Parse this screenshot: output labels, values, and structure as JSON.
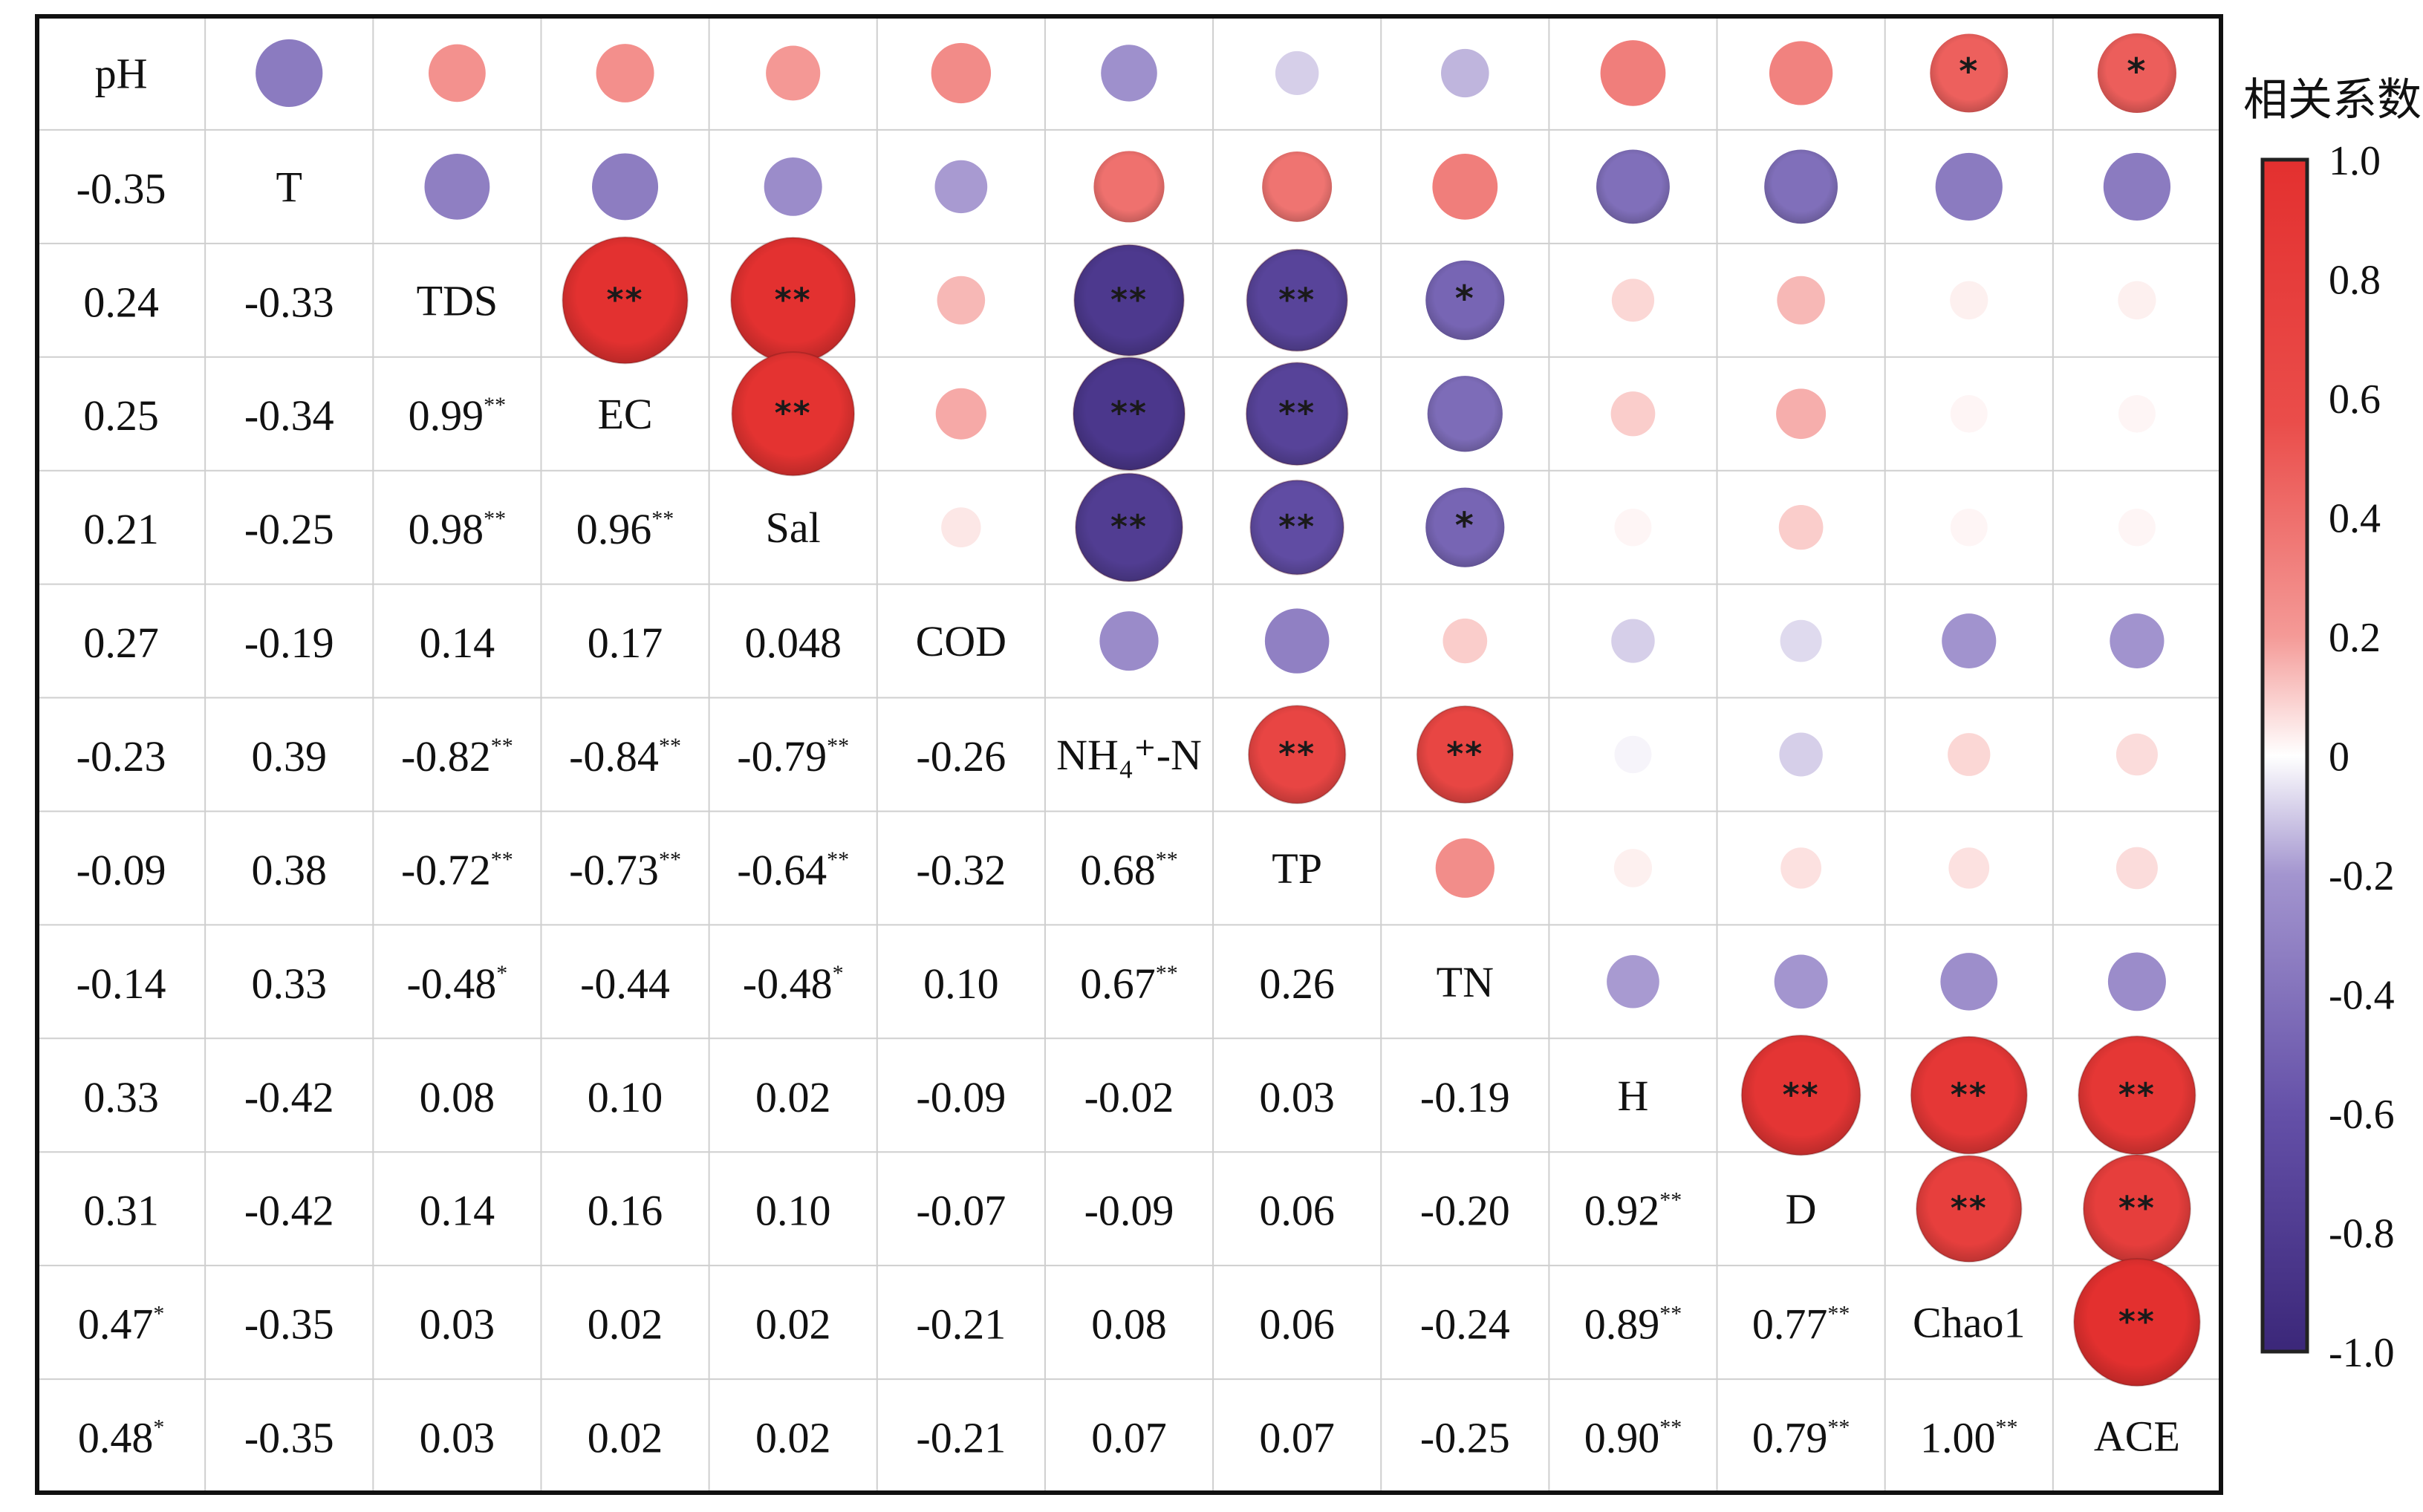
{
  "chart_data": {
    "type": "heatmap",
    "variables": [
      "pH",
      "T",
      "TDS",
      "EC",
      "Sal",
      "COD",
      "NH₄⁺-N",
      "TP",
      "TN",
      "H",
      "D",
      "Chao1",
      "ACE"
    ],
    "lower_triangle_rows": [
      [
        [
          "-0.35",
          ""
        ]
      ],
      [
        [
          "0.24",
          ""
        ],
        [
          "-0.33",
          ""
        ]
      ],
      [
        [
          "0.25",
          ""
        ],
        [
          "-0.34",
          ""
        ],
        [
          "0.99",
          "**"
        ]
      ],
      [
        [
          "0.21",
          ""
        ],
        [
          "-0.25",
          ""
        ],
        [
          "0.98",
          "**"
        ],
        [
          "0.96",
          "**"
        ]
      ],
      [
        [
          "0.27",
          ""
        ],
        [
          "-0.19",
          ""
        ],
        [
          "0.14",
          ""
        ],
        [
          "0.17",
          ""
        ],
        [
          "0.048",
          ""
        ]
      ],
      [
        [
          "-0.23",
          ""
        ],
        [
          "0.39",
          ""
        ],
        [
          "-0.82",
          "**"
        ],
        [
          "-0.84",
          "**"
        ],
        [
          "-0.79",
          "**"
        ],
        [
          "-0.26",
          ""
        ]
      ],
      [
        [
          "-0.09",
          ""
        ],
        [
          "0.38",
          ""
        ],
        [
          "-0.72",
          "**"
        ],
        [
          "-0.73",
          "**"
        ],
        [
          "-0.64",
          "**"
        ],
        [
          "-0.32",
          ""
        ],
        [
          "0.68",
          "**"
        ]
      ],
      [
        [
          "-0.14",
          ""
        ],
        [
          "0.33",
          ""
        ],
        [
          "-0.48",
          "*"
        ],
        [
          "-0.44",
          ""
        ],
        [
          "-0.48",
          "*"
        ],
        [
          "0.10",
          ""
        ],
        [
          "0.67",
          "**"
        ],
        [
          "0.26",
          ""
        ]
      ],
      [
        [
          "0.33",
          ""
        ],
        [
          "-0.42",
          ""
        ],
        [
          "0.08",
          ""
        ],
        [
          "0.10",
          ""
        ],
        [
          "0.02",
          ""
        ],
        [
          "-0.09",
          ""
        ],
        [
          "-0.02",
          ""
        ],
        [
          "0.03",
          ""
        ],
        [
          "-0.19",
          ""
        ]
      ],
      [
        [
          "0.31",
          ""
        ],
        [
          "-0.42",
          ""
        ],
        [
          "0.14",
          ""
        ],
        [
          "0.16",
          ""
        ],
        [
          "0.10",
          ""
        ],
        [
          "-0.07",
          ""
        ],
        [
          "-0.09",
          ""
        ],
        [
          "0.06",
          ""
        ],
        [
          "-0.20",
          ""
        ],
        [
          "0.92",
          "**"
        ]
      ],
      [
        [
          "0.47",
          "*"
        ],
        [
          "-0.35",
          ""
        ],
        [
          "0.03",
          ""
        ],
        [
          "0.02",
          ""
        ],
        [
          "0.02",
          ""
        ],
        [
          "-0.21",
          ""
        ],
        [
          "0.08",
          ""
        ],
        [
          "0.06",
          ""
        ],
        [
          "-0.24",
          ""
        ],
        [
          "0.89",
          "**"
        ],
        [
          "0.77",
          "**"
        ]
      ],
      [
        [
          "0.48",
          "*"
        ],
        [
          "-0.35",
          ""
        ],
        [
          "0.03",
          ""
        ],
        [
          "0.02",
          ""
        ],
        [
          "0.02",
          ""
        ],
        [
          "-0.21",
          ""
        ],
        [
          "0.07",
          ""
        ],
        [
          "0.07",
          ""
        ],
        [
          "-0.25",
          ""
        ],
        [
          "0.90",
          "**"
        ],
        [
          "0.79",
          "**"
        ],
        [
          "1.00",
          "**"
        ]
      ]
    ],
    "colorbar": {
      "title": "相关系数",
      "range": [
        -1.0,
        1.0
      ],
      "ticks": [
        "1.0",
        "0.8",
        "0.6",
        "0.4",
        "0.2",
        "0",
        "-0.2",
        "-0.4",
        "-0.6",
        "-0.8",
        "-1.0"
      ],
      "tick_values": [
        1.0,
        0.8,
        0.6,
        0.4,
        0.2,
        0,
        -0.2,
        -0.4,
        -0.6,
        -0.8,
        -1.0
      ],
      "color_positive": "#e3302f",
      "color_zero": "#ffffff",
      "color_negative": "#3b2779"
    },
    "upper_marker": "ellipse",
    "lower_marker": "value_text",
    "significance": [
      "*",
      "**"
    ]
  }
}
